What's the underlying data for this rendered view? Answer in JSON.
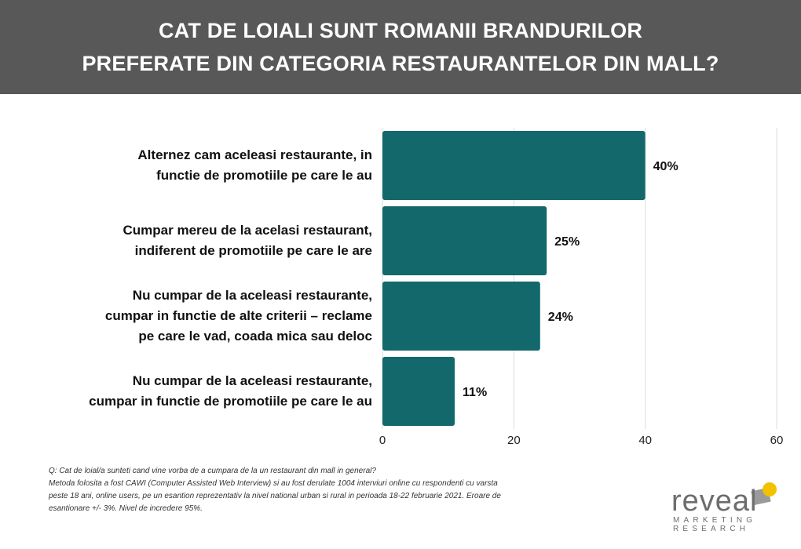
{
  "chart_data": {
    "type": "barh",
    "title": "CAT DE LOIALI SUNT ROMANII BRANDURILOR\nPREFERATE DIN CATEGORIA RESTAURANTELOR DIN MALL?",
    "categories": [
      "Alternez cam aceleasi restaurante, in\nfunctie de promotiile pe care le au",
      "Cumpar mereu de la acelasi restaurant,\nindiferent de promotiile pe care le are",
      "Nu cumpar de la aceleasi restaurante,\ncumpar in functie de alte criterii – reclame\npe care le vad, coada mica sau deloc",
      "Nu cumpar de la aceleasi restaurante,\ncumpar in functie de promotiile pe care le au"
    ],
    "values": [
      40,
      25,
      24,
      11
    ],
    "value_labels": [
      "40%",
      "25%",
      "24%",
      "11%"
    ],
    "color": "#12686b",
    "xlim": [
      0,
      60
    ],
    "xticks": [
      0,
      20,
      40,
      60
    ],
    "grid": true
  },
  "footnote": "Q: Cat de loial/a sunteti cand vine vorba de a cumpara de la un restaurant din mall in general?\nMetoda folosita a fost CAWI (Computer Assisted Web Interview) si au fost derulate 1004 interviuri online cu respondenti cu varsta\npeste 18 ani, online users, pe un esantion reprezentativ la nivel national urban si rural in perioada 18-22 februarie 2021. Eroare de\nesantionare +/- 3%. Nivel de incredere 95%.",
  "logo": {
    "word": "reveal",
    "line1": "MARKETING",
    "line2": "RESEARCH"
  }
}
